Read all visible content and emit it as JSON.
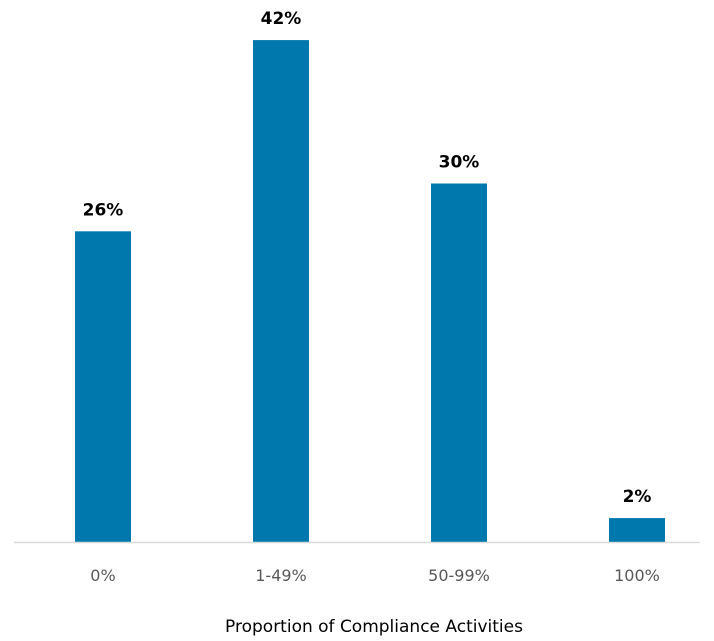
{
  "chart_data": {
    "type": "bar",
    "title": "",
    "xlabel": "Proportion of Compliance Activities",
    "ylabel": "",
    "categories": [
      "0%",
      "1-49%",
      "50-99%",
      "100%"
    ],
    "values": [
      26,
      42,
      30,
      2
    ],
    "data_labels": [
      "26%",
      "42%",
      "30%",
      "2%"
    ],
    "ylim": [
      0,
      45
    ],
    "grid": false,
    "legend": "none",
    "bar_color": "#0077AD",
    "axis_color": "#D9D9D9"
  }
}
